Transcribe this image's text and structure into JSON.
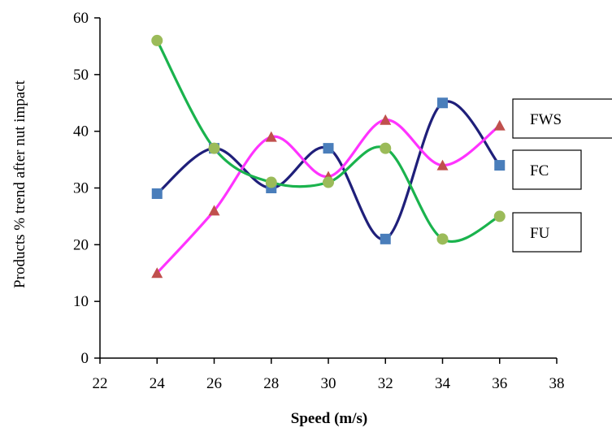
{
  "chart_data": {
    "type": "line",
    "xlabel": "Speed (m/s)",
    "ylabel": "Products % trend after nut impact",
    "xlim": [
      22,
      38
    ],
    "ylim": [
      0,
      60
    ],
    "x_ticks": [
      22,
      24,
      26,
      28,
      30,
      32,
      34,
      36,
      38
    ],
    "y_ticks": [
      0,
      10,
      20,
      30,
      40,
      50,
      60
    ],
    "x": [
      24,
      26,
      28,
      30,
      32,
      34,
      36
    ],
    "grid": false,
    "series": [
      {
        "values": [
          29,
          37,
          30,
          37,
          21,
          45,
          34
        ],
        "line_color": "#1f1f7a",
        "marker_color": "#4a7ebb",
        "marker": "square"
      },
      {
        "values": [
          15,
          26,
          39,
          32,
          42,
          34,
          41
        ],
        "line_color": "#ff33ff",
        "marker_color": "#c0504d",
        "marker": "triangle"
      },
      {
        "values": [
          56,
          37,
          31,
          31,
          37,
          21,
          25
        ],
        "line_color": "#1ab34d",
        "marker_color": "#9bbb59",
        "marker": "circle"
      }
    ],
    "label_boxes": [
      "FWS",
      "FC",
      "FU"
    ]
  }
}
